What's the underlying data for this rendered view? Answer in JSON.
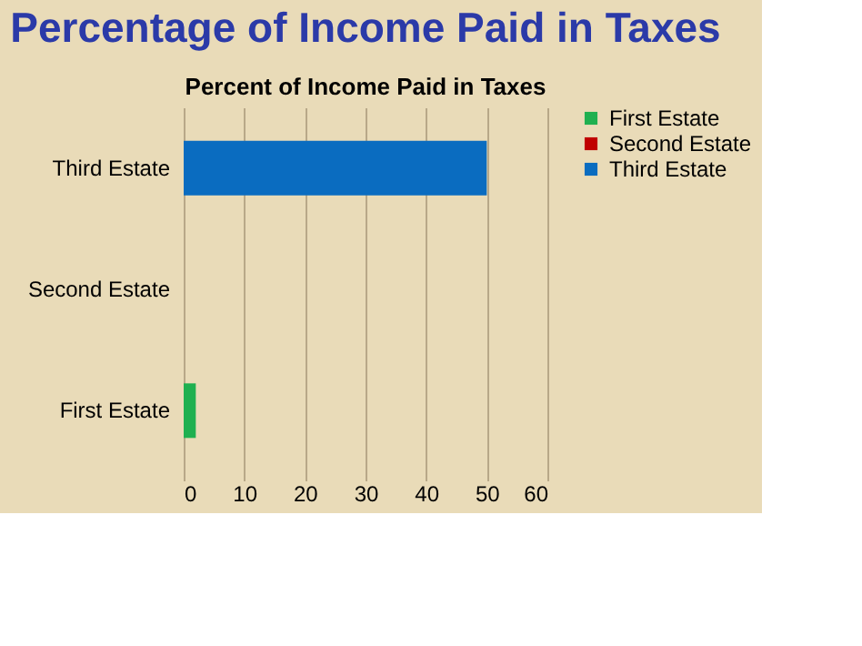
{
  "chart_data": {
    "type": "bar",
    "orientation": "horizontal",
    "title": "Percentage of Income Paid in Taxes",
    "subtitle": "Percent of Income Paid in Taxes",
    "categories": [
      "Third Estate",
      "Second Estate",
      "First Estate"
    ],
    "series": [
      {
        "name": "First Estate",
        "color": "#1fb050",
        "values": [
          null,
          null,
          2
        ]
      },
      {
        "name": "Second Estate",
        "color": "#c00000",
        "values": [
          null,
          0,
          null
        ]
      },
      {
        "name": "Third Estate",
        "color": "#0a6cc0",
        "values": [
          50,
          null,
          null
        ]
      }
    ],
    "xlim": [
      0,
      60
    ],
    "xticks": [
      0,
      10,
      20,
      30,
      40,
      50,
      60
    ],
    "grid": "x",
    "legend": "right"
  }
}
